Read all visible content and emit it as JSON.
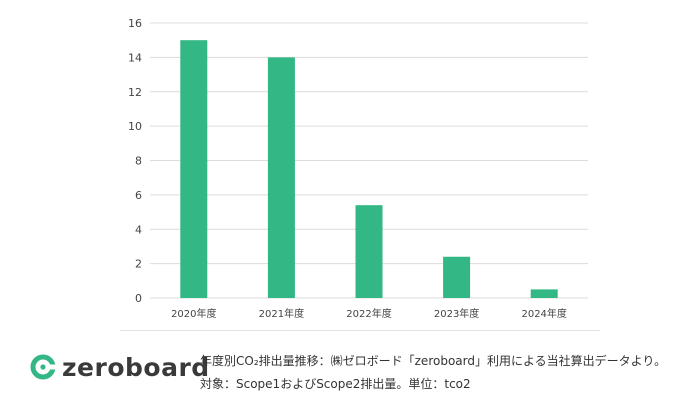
{
  "chart_data": {
    "type": "bar",
    "categories": [
      "2020年度",
      "2021年度",
      "2022年度",
      "2023年度",
      "2024年度"
    ],
    "values": [
      15,
      14,
      5.4,
      2.4,
      0.5
    ],
    "ylim": [
      0,
      16
    ],
    "yticks": [
      0,
      2,
      4,
      6,
      8,
      10,
      12,
      14,
      16
    ],
    "grid": true,
    "bar_color": "#33b784",
    "grid_color": "#dcdcdc"
  },
  "footer": {
    "logo_text": "zeroboard",
    "logo_color": "#33b784",
    "caption_line1": "年度別CO₂排出量推移：㈱ゼロボード「zeroboard」利用による当社算出データより。",
    "caption_line2": "対象：Scope1およびScope2排出量。単位：tco2"
  }
}
